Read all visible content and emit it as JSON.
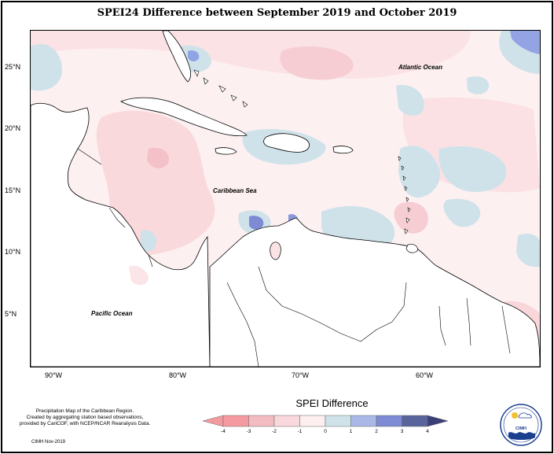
{
  "title": "SPEI24 Difference between September 2019 and October 2019",
  "map": {
    "ocean_labels": [
      {
        "id": "atlantic",
        "text": "Atlantic Ocean"
      },
      {
        "id": "caribbean",
        "text": "Caribbean Sea"
      },
      {
        "id": "pacific",
        "text": "Pacific Ocean"
      }
    ],
    "lat_labels": [
      "25°N",
      "20°N",
      "15°N",
      "10°N",
      "5°N"
    ],
    "lon_labels": [
      "90°W",
      "80°W",
      "70°W",
      "60°W"
    ]
  },
  "legend": {
    "title": "SPEI Difference",
    "ticks": [
      "-4",
      "-3",
      "-2",
      "-1",
      "0",
      "1",
      "2",
      "3",
      "4"
    ],
    "colors": [
      "#f59aa0",
      "#f2bcc2",
      "#f8d8dc",
      "#fdeef0",
      "#cfe2ea",
      "#aab8e8",
      "#7e8ad4",
      "#59649d"
    ]
  },
  "footer": {
    "line1": "Precipitation Map of the Caribbean Region.",
    "line2": "Created by aggregating station based observations,",
    "line3": "provided by CariCOF, with NCEP/NCAR Reanalysis Data.",
    "credit": "CIMH Nov-2019"
  },
  "logo": {
    "text": "CIMH"
  }
}
